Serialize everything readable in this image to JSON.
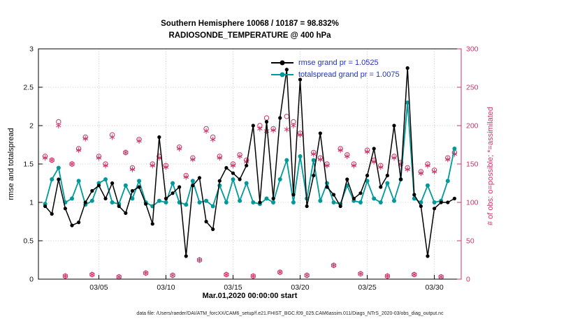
{
  "title": {
    "line1": "Southern Hemisphere 10068 / 10187 = 98.832%",
    "line2": "RADIOSONDE_TEMPERATURE @ 400 hPa"
  },
  "axes": {
    "left_label": "rmse and totalspread",
    "right_label": "# of obs: o=possible; *=assimilated",
    "x_label": "Mar.01,2020 00:00:00 start",
    "left_ticks": [
      0,
      0.5,
      1,
      1.5,
      2,
      2.5,
      3
    ],
    "right_ticks": [
      0,
      50,
      100,
      150,
      200,
      250,
      300
    ],
    "x_ticks": [
      {
        "day": 4,
        "label": "03/05"
      },
      {
        "day": 9,
        "label": "03/10"
      },
      {
        "day": 14,
        "label": "03/15"
      },
      {
        "day": 19,
        "label": "03/20"
      },
      {
        "day": 24,
        "label": "03/25"
      },
      {
        "day": 29,
        "label": "03/30"
      }
    ]
  },
  "legend": [
    {
      "label": "rmse grand pr = 1.0525",
      "color": "#000000"
    },
    {
      "label": "totalspread grand pr = 1.0075",
      "color": "#009999"
    }
  ],
  "colors": {
    "rmse": "#000000",
    "totalspread": "#009999",
    "obs": "#CC3366",
    "grid": "#c8c8c8",
    "legend_text": "#2233bb"
  },
  "caption": "data file: /Users/raeder/DAI/ATM_forcXX/CAM6_setup/f.e21.FHIST_BGC.f09_025.CAM6assim.011/Diags_NTrS_2020-03/obs_diag_output.nc",
  "chart_data": {
    "type": "line+scatter",
    "x_unit": "days since Mar.01,2020 00:00:00",
    "xlim": [
      -0.5,
      31
    ],
    "ylim_left": [
      0,
      3
    ],
    "ylim_right": [
      0,
      300
    ],
    "t_days": [
      0,
      0.5,
      1,
      1.5,
      2,
      2.5,
      3,
      3.5,
      4,
      4.5,
      5,
      5.5,
      6,
      6.5,
      7,
      7.5,
      8,
      8.5,
      9,
      9.5,
      10,
      10.5,
      11,
      11.5,
      12,
      12.5,
      13,
      13.5,
      14,
      14.5,
      15,
      15.5,
      16,
      16.5,
      17,
      17.5,
      18,
      18.5,
      19,
      19.5,
      20,
      20.5,
      21,
      21.5,
      22,
      22.5,
      23,
      23.5,
      24,
      24.5,
      25,
      25.5,
      26,
      26.5,
      27,
      27.5,
      28,
      28.5,
      29,
      29.5,
      30,
      30.5
    ],
    "series": [
      {
        "name": "rmse",
        "color": "#000000",
        "values": [
          0.95,
          0.85,
          1.3,
          0.92,
          0.7,
          0.74,
          1.0,
          1.15,
          1.22,
          1.05,
          1.25,
          0.95,
          0.86,
          1.15,
          1.2,
          0.98,
          0.72,
          1.85,
          1.05,
          1.12,
          1.2,
          0.3,
          1.22,
          1.32,
          0.75,
          0.65,
          1.28,
          1.45,
          1.38,
          1.3,
          1.48,
          2.0,
          1.0,
          2.05,
          1.05,
          2.1,
          2.73,
          1.1,
          2.6,
          0.95,
          1.35,
          1.9,
          1.2,
          1.1,
          0.95,
          1.3,
          1.05,
          1.12,
          1.35,
          1.7,
          1.2,
          1.35,
          2.0,
          1.3,
          2.75,
          1.1,
          0.95,
          0.3,
          0.92,
          1.0,
          1.0,
          1.05
        ]
      },
      {
        "name": "totalspread",
        "color": "#009999",
        "values": [
          0.98,
          1.3,
          1.45,
          1.0,
          1.05,
          1.28,
          0.97,
          1.02,
          1.25,
          1.3,
          1.0,
          0.98,
          1.22,
          1.05,
          1.28,
          1.0,
          0.95,
          1.02,
          1.0,
          1.25,
          1.0,
          0.97,
          1.28,
          1.0,
          1.02,
          0.95,
          1.22,
          1.0,
          1.3,
          1.02,
          1.25,
          1.0,
          0.98,
          1.05,
          1.0,
          1.3,
          1.55,
          1.0,
          1.6,
          1.05,
          1.55,
          1.02,
          1.25,
          1.0,
          0.98,
          1.22,
          1.02,
          1.0,
          1.28,
          1.05,
          1.0,
          1.25,
          1.02,
          1.3,
          2.3,
          1.05,
          1.0,
          1.22,
          1.0,
          1.02,
          1.28,
          1.7
        ]
      }
    ],
    "obs_series": [
      {
        "name": "possible",
        "marker": "o",
        "values": [
          160,
          155,
          205,
          4,
          150,
          170,
          185,
          6,
          160,
          150,
          188,
          3,
          165,
          145,
          182,
          8,
          150,
          160,
          148,
          5,
          172,
          135,
          158,
          25,
          196,
          185,
          160,
          6,
          150,
          162,
          155,
          4,
          200,
          210,
          196,
          9,
          212,
          205,
          190,
          5,
          165,
          158,
          150,
          18,
          170,
          162,
          150,
          7,
          168,
          155,
          148,
          4,
          160,
          152,
          145,
          6,
          140,
          150,
          142,
          3,
          158,
          165
        ]
      },
      {
        "name": "assimilated",
        "marker": "*",
        "values": [
          158,
          155,
          200,
          4,
          150,
          168,
          183,
          6,
          158,
          148,
          185,
          3,
          165,
          143,
          180,
          8,
          148,
          158,
          146,
          5,
          170,
          133,
          156,
          25,
          193,
          182,
          158,
          6,
          148,
          160,
          153,
          4,
          196,
          193,
          194,
          9,
          195,
          200,
          188,
          5,
          163,
          156,
          148,
          18,
          168,
          160,
          148,
          7,
          166,
          153,
          146,
          4,
          158,
          150,
          143,
          6,
          138,
          148,
          140,
          3,
          156,
          163
        ]
      }
    ]
  }
}
